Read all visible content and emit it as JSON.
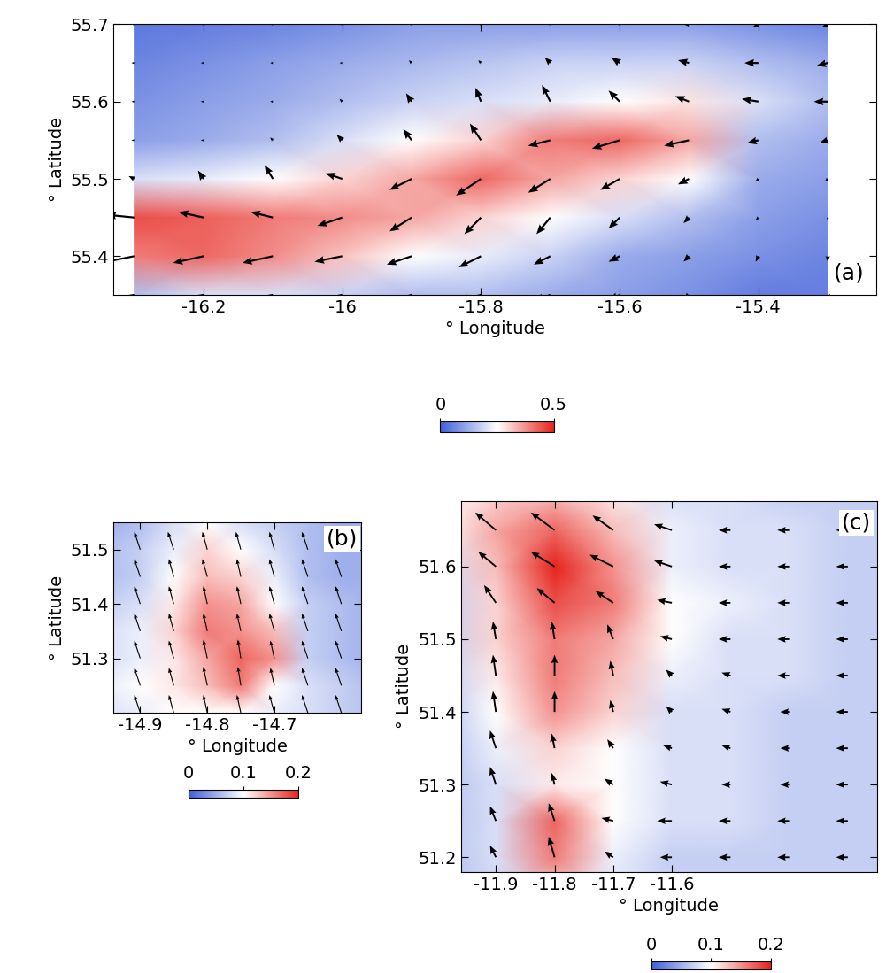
{
  "chart_data": [
    {
      "type": "quiver",
      "annotation": "(a)",
      "xlabel": "° Longitude",
      "ylabel": "° Latitude",
      "xlim": [
        -16.33,
        -15.23
      ],
      "ylim": [
        55.35,
        55.7
      ],
      "xticks": [
        -16.2,
        -16,
        -15.8,
        -15.6,
        -15.4
      ],
      "yticks": [
        55.4,
        55.5,
        55.6,
        55.7
      ],
      "lon": [
        -16.3,
        -16.2,
        -16.1,
        -16.0,
        -15.9,
        -15.8,
        -15.7,
        -15.6,
        -15.5,
        -15.4,
        -15.3
      ],
      "lat": [
        55.35,
        55.4,
        55.45,
        55.5,
        55.55,
        55.6,
        55.65,
        55.7
      ],
      "cells": [
        [
          0.15,
          0.2,
          0.2,
          0.18,
          0.15,
          0.15,
          0.12,
          0.1,
          0.08,
          0.05,
          0.05
        ],
        [
          0.4,
          0.42,
          0.38,
          0.32,
          0.25,
          0.22,
          0.18,
          0.12,
          0.1,
          0.08,
          0.06
        ],
        [
          0.45,
          0.43,
          0.4,
          0.38,
          0.35,
          0.3,
          0.25,
          0.2,
          0.15,
          0.1,
          0.08
        ],
        [
          0.2,
          0.22,
          0.25,
          0.3,
          0.35,
          0.42,
          0.35,
          0.3,
          0.25,
          0.12,
          0.1
        ],
        [
          0.1,
          0.12,
          0.15,
          0.2,
          0.25,
          0.3,
          0.4,
          0.42,
          0.35,
          0.15,
          0.12
        ],
        [
          0.08,
          0.1,
          0.12,
          0.15,
          0.18,
          0.2,
          0.22,
          0.25,
          0.28,
          0.2,
          0.15
        ],
        [
          0.06,
          0.08,
          0.1,
          0.12,
          0.14,
          0.16,
          0.18,
          0.18,
          0.18,
          0.15,
          0.12
        ],
        [
          0.04,
          0.05,
          0.06,
          0.08,
          0.1,
          0.1,
          0.1,
          0.1,
          0.1,
          0.08,
          0.06
        ]
      ],
      "u": [
        [
          -0.6,
          -0.6,
          -0.55,
          -0.5,
          -0.45,
          -0.4,
          -0.3,
          -0.2,
          -0.1,
          0,
          0.05
        ],
        [
          -0.6,
          -0.55,
          -0.55,
          -0.5,
          -0.45,
          -0.4,
          -0.3,
          -0.2,
          -0.1,
          -0.05,
          0
        ],
        [
          -0.5,
          -0.45,
          -0.4,
          -0.45,
          -0.4,
          -0.3,
          -0.25,
          -0.2,
          -0.1,
          -0.05,
          0
        ],
        [
          -0.1,
          -0.1,
          -0.15,
          -0.3,
          -0.4,
          -0.45,
          -0.4,
          -0.35,
          -0.2,
          -0.05,
          -0.05
        ],
        [
          -0.05,
          -0.05,
          -0.05,
          -0.1,
          -0.15,
          -0.2,
          -0.4,
          -0.5,
          -0.45,
          -0.2,
          -0.15
        ],
        [
          -0.05,
          -0.05,
          -0.05,
          -0.05,
          -0.1,
          -0.1,
          -0.15,
          -0.2,
          -0.25,
          -0.3,
          -0.25
        ],
        [
          -0.05,
          -0.05,
          -0.05,
          -0.05,
          -0.05,
          -0.05,
          -0.1,
          -0.15,
          -0.2,
          -0.25,
          -0.2
        ],
        [
          -0.05,
          -0.05,
          -0.05,
          -0.05,
          -0.05,
          -0.05,
          -0.05,
          -0.05,
          -0.1,
          -0.1,
          -0.1
        ]
      ],
      "v": [
        [
          -0.1,
          -0.1,
          -0.1,
          -0.1,
          -0.12,
          -0.1,
          -0.1,
          -0.1,
          -0.1,
          -0.1,
          -0.1
        ],
        [
          -0.12,
          -0.12,
          -0.12,
          -0.1,
          -0.15,
          -0.2,
          -0.15,
          -0.1,
          -0.1,
          -0.1,
          -0.1
        ],
        [
          0.05,
          0.1,
          0.1,
          -0.15,
          -0.25,
          -0.3,
          -0.3,
          -0.2,
          -0.1,
          -0.05,
          -0.05
        ],
        [
          0.05,
          0.15,
          0.25,
          0.1,
          -0.2,
          -0.3,
          -0.25,
          -0.2,
          -0.1,
          -0.05,
          -0.05
        ],
        [
          0,
          0,
          0.05,
          0.1,
          0.2,
          0.3,
          -0.1,
          -0.15,
          -0.1,
          -0.05,
          -0.05
        ],
        [
          0,
          0,
          0,
          0.05,
          0.15,
          0.25,
          0.3,
          0.2,
          0.1,
          0.05,
          0
        ],
        [
          0,
          0,
          0,
          0,
          0.05,
          0.05,
          0.1,
          0.1,
          0.05,
          0,
          -0.05
        ],
        [
          0,
          0,
          0,
          0,
          0,
          0,
          0,
          0,
          0,
          -0.05,
          -0.05
        ]
      ],
      "color_range": [
        0,
        0.5
      ],
      "color_ticks": [
        0,
        0.5
      ]
    },
    {
      "type": "quiver",
      "annotation": "(b)",
      "xlabel": "° Longitude",
      "ylabel": "° Latitude",
      "xlim": [
        -14.94,
        -14.57
      ],
      "ylim": [
        51.2,
        51.55
      ],
      "xticks": [
        -14.9,
        -14.8,
        -14.7
      ],
      "yticks": [
        51.3,
        51.4,
        51.5
      ],
      "lon": [
        -14.95,
        -14.9,
        -14.85,
        -14.8,
        -14.75,
        -14.7,
        -14.65,
        -14.6,
        -14.55
      ],
      "lat": [
        51.2,
        51.25,
        51.3,
        51.35,
        51.4,
        51.45,
        51.5,
        51.55
      ],
      "cells": [
        [
          0.08,
          0.09,
          0.1,
          0.1,
          0.1,
          0.09,
          0.08,
          0.07,
          0.06
        ],
        [
          0.09,
          0.1,
          0.11,
          0.13,
          0.16,
          0.1,
          0.08,
          0.07,
          0.06
        ],
        [
          0.08,
          0.09,
          0.11,
          0.14,
          0.17,
          0.15,
          0.07,
          0.06,
          0.05
        ],
        [
          0.08,
          0.09,
          0.12,
          0.16,
          0.15,
          0.13,
          0.07,
          0.06,
          0.05
        ],
        [
          0.07,
          0.08,
          0.11,
          0.15,
          0.14,
          0.1,
          0.07,
          0.06,
          0.05
        ],
        [
          0.06,
          0.07,
          0.1,
          0.13,
          0.12,
          0.09,
          0.06,
          0.05,
          0.05
        ],
        [
          0.06,
          0.07,
          0.09,
          0.12,
          0.1,
          0.08,
          0.06,
          0.05,
          0.05
        ],
        [
          0.05,
          0.06,
          0.08,
          0.1,
          0.08,
          0.07,
          0.06,
          0.05,
          0.05
        ]
      ],
      "u": [
        [
          -0.3,
          -0.3,
          -0.25,
          -0.2,
          -0.2,
          -0.25,
          -0.3,
          -0.3,
          -0.3
        ],
        [
          -0.3,
          -0.3,
          -0.25,
          -0.2,
          -0.15,
          -0.2,
          -0.3,
          -0.3,
          -0.3
        ],
        [
          -0.3,
          -0.3,
          -0.25,
          -0.2,
          -0.15,
          -0.2,
          -0.3,
          -0.3,
          -0.3
        ],
        [
          -0.3,
          -0.3,
          -0.25,
          -0.2,
          -0.2,
          -0.25,
          -0.3,
          -0.3,
          -0.3
        ],
        [
          -0.3,
          -0.3,
          -0.25,
          -0.2,
          -0.2,
          -0.25,
          -0.3,
          -0.3,
          -0.3
        ],
        [
          -0.3,
          -0.3,
          -0.25,
          -0.25,
          -0.2,
          -0.25,
          -0.3,
          -0.3,
          -0.3
        ],
        [
          -0.3,
          -0.3,
          -0.3,
          -0.25,
          -0.25,
          -0.25,
          -0.3,
          -0.3,
          -0.3
        ],
        [
          -0.3,
          -0.3,
          -0.3,
          -0.3,
          -0.25,
          -0.3,
          -0.3,
          -0.3,
          -0.3
        ]
      ],
      "v": [
        [
          0.9,
          0.9,
          0.9,
          0.9,
          0.9,
          0.9,
          0.9,
          0.9,
          0.9
        ],
        [
          0.9,
          0.9,
          0.9,
          0.95,
          0.95,
          0.9,
          0.9,
          0.9,
          0.9
        ],
        [
          0.9,
          0.9,
          0.9,
          0.95,
          0.95,
          0.9,
          0.9,
          0.9,
          0.9
        ],
        [
          0.9,
          0.9,
          0.9,
          0.9,
          0.9,
          0.9,
          0.9,
          0.9,
          0.9
        ],
        [
          0.9,
          0.9,
          0.9,
          0.9,
          0.9,
          0.9,
          0.9,
          0.9,
          0.9
        ],
        [
          0.9,
          0.9,
          0.9,
          0.9,
          0.9,
          0.9,
          0.9,
          0.9,
          0.9
        ],
        [
          0.9,
          0.9,
          0.9,
          0.9,
          0.9,
          0.9,
          0.9,
          0.9,
          0.9
        ],
        [
          0.9,
          0.9,
          0.9,
          0.9,
          0.9,
          0.9,
          0.9,
          0.9,
          0.9
        ]
      ],
      "color_range": [
        0,
        0.2
      ],
      "color_ticks": [
        0,
        0.1,
        0.2
      ]
    },
    {
      "type": "quiver",
      "annotation": "(c)",
      "xlabel": "° Longitude",
      "ylabel": "° Latitude",
      "xlim": [
        -11.96,
        -11.25
      ],
      "ylim": [
        51.18,
        51.69
      ],
      "xticks": [
        -11.9,
        -11.8,
        -11.7,
        -11.6
      ],
      "yticks": [
        51.2,
        51.3,
        51.4,
        51.5,
        51.6
      ],
      "lon": [
        -12.0,
        -11.9,
        -11.8,
        -11.7,
        -11.6,
        -11.5,
        -11.4,
        -11.3,
        -11.2
      ],
      "lat": [
        51.15,
        51.2,
        51.25,
        51.3,
        51.35,
        51.4,
        51.45,
        51.5,
        51.55,
        51.6,
        51.65,
        51.7
      ],
      "cells": [
        [
          0.06,
          0.07,
          0.12,
          0.08,
          0.07,
          0.07,
          0.07,
          0.07,
          0.07
        ],
        [
          0.06,
          0.08,
          0.16,
          0.09,
          0.07,
          0.07,
          0.07,
          0.07,
          0.07
        ],
        [
          0.06,
          0.08,
          0.17,
          0.1,
          0.08,
          0.08,
          0.07,
          0.07,
          0.07
        ],
        [
          0.06,
          0.08,
          0.11,
          0.1,
          0.08,
          0.08,
          0.07,
          0.07,
          0.07
        ],
        [
          0.06,
          0.09,
          0.12,
          0.1,
          0.08,
          0.08,
          0.07,
          0.07,
          0.07
        ],
        [
          0.06,
          0.1,
          0.15,
          0.12,
          0.08,
          0.08,
          0.07,
          0.07,
          0.07
        ],
        [
          0.07,
          0.11,
          0.16,
          0.13,
          0.09,
          0.08,
          0.08,
          0.07,
          0.07
        ],
        [
          0.07,
          0.12,
          0.16,
          0.14,
          0.1,
          0.08,
          0.08,
          0.07,
          0.07
        ],
        [
          0.07,
          0.12,
          0.18,
          0.16,
          0.1,
          0.09,
          0.08,
          0.07,
          0.07
        ],
        [
          0.08,
          0.13,
          0.2,
          0.15,
          0.09,
          0.08,
          0.08,
          0.07,
          0.07
        ],
        [
          0.1,
          0.14,
          0.17,
          0.13,
          0.09,
          0.08,
          0.08,
          0.07,
          0.07
        ],
        [
          0.1,
          0.12,
          0.13,
          0.11,
          0.08,
          0.08,
          0.07,
          0.07,
          0.07
        ]
      ],
      "u": [
        [
          -0.1,
          -0.1,
          -0.1,
          -0.15,
          -0.2,
          -0.2,
          -0.2,
          -0.2,
          -0.2
        ],
        [
          -0.1,
          -0.1,
          -0.1,
          -0.15,
          -0.2,
          -0.2,
          -0.2,
          -0.2,
          -0.2
        ],
        [
          -0.1,
          -0.1,
          -0.1,
          -0.2,
          -0.25,
          -0.2,
          -0.2,
          -0.2,
          -0.2
        ],
        [
          -0.1,
          -0.1,
          -0.05,
          -0.15,
          -0.2,
          -0.15,
          -0.15,
          -0.2,
          -0.2
        ],
        [
          -0.1,
          -0.1,
          -0.05,
          -0.1,
          -0.15,
          -0.15,
          -0.15,
          -0.2,
          -0.2
        ],
        [
          -0.1,
          -0.05,
          0,
          -0.05,
          -0.1,
          -0.15,
          -0.15,
          -0.2,
          -0.2
        ],
        [
          -0.1,
          -0.05,
          0,
          -0.05,
          -0.1,
          -0.15,
          -0.2,
          -0.2,
          -0.2
        ],
        [
          -0.1,
          -0.05,
          -0.05,
          -0.1,
          -0.2,
          -0.2,
          -0.2,
          -0.2,
          -0.2
        ],
        [
          -0.15,
          -0.2,
          -0.3,
          -0.3,
          -0.25,
          -0.2,
          -0.2,
          -0.2,
          -0.2
        ],
        [
          -0.2,
          -0.3,
          -0.4,
          -0.4,
          -0.3,
          -0.2,
          -0.2,
          -0.2,
          -0.2
        ],
        [
          -0.3,
          -0.35,
          -0.4,
          -0.35,
          -0.3,
          -0.2,
          -0.2,
          -0.2,
          -0.2
        ],
        [
          -0.3,
          -0.35,
          -0.4,
          -0.35,
          -0.3,
          -0.2,
          -0.2,
          -0.2,
          -0.2
        ]
      ],
      "v": [
        [
          0.1,
          0.15,
          0.3,
          0.1,
          0,
          0,
          0,
          0,
          0
        ],
        [
          0.15,
          0.2,
          0.35,
          0.1,
          0,
          0,
          0,
          0,
          0
        ],
        [
          0.2,
          0.25,
          0.3,
          0.05,
          0,
          0,
          0,
          0,
          0
        ],
        [
          0.25,
          0.3,
          0.2,
          0.1,
          0.05,
          0,
          0,
          0,
          0
        ],
        [
          0.3,
          0.3,
          0.25,
          0.15,
          0.05,
          0.05,
          0,
          0,
          0
        ],
        [
          0.3,
          0.35,
          0.35,
          0.2,
          0.1,
          0.05,
          0,
          0,
          0
        ],
        [
          0.3,
          0.35,
          0.35,
          0.25,
          0.1,
          0.05,
          0,
          0,
          0
        ],
        [
          0.3,
          0.3,
          0.3,
          0.25,
          0.05,
          0,
          0,
          0,
          0
        ],
        [
          0.3,
          0.3,
          0.25,
          0.2,
          0.05,
          0,
          0,
          0,
          0
        ],
        [
          0.3,
          0.25,
          0.25,
          0.2,
          0.1,
          0,
          0,
          0,
          0
        ],
        [
          0.3,
          0.3,
          0.3,
          0.25,
          0.1,
          0,
          0,
          0,
          0
        ],
        [
          0.3,
          0.3,
          0.3,
          0.25,
          0.1,
          0,
          0,
          0,
          0
        ]
      ],
      "color_range": [
        0,
        0.2
      ],
      "color_ticks": [
        0,
        0.1,
        0.2
      ]
    }
  ]
}
